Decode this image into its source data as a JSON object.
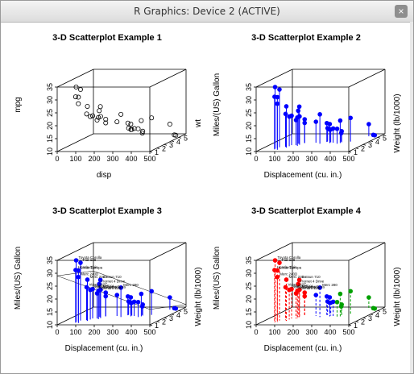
{
  "window": {
    "title": "R Graphics: Device 2 (ACTIVE)",
    "close_symbol": "×"
  },
  "chart_data": [
    {
      "type": "scatter3d",
      "title": "3-D Scatterplot Example 1",
      "xlabel": "disp",
      "ylabel": "wt",
      "zlabel": "mpg",
      "xlim": [
        0,
        500
      ],
      "ylim": [
        1,
        6
      ],
      "zlim": [
        10,
        35
      ],
      "xticks": [
        "0",
        "100",
        "200",
        "300",
        "400",
        "500"
      ],
      "yticks": [
        "1",
        "2",
        "3",
        "4",
        "5"
      ],
      "zticks": [
        "10",
        "15",
        "20",
        "25",
        "30",
        "35"
      ],
      "style": "open",
      "color": "#000000",
      "vertical_lines": false,
      "points": [
        [
          160,
          2.6,
          21.0
        ],
        [
          160,
          2.9,
          21.0
        ],
        [
          108,
          2.3,
          22.8
        ],
        [
          258,
          3.2,
          21.4
        ],
        [
          360,
          3.4,
          18.7
        ],
        [
          225,
          3.5,
          18.1
        ],
        [
          360,
          3.6,
          14.3
        ],
        [
          147,
          3.2,
          24.4
        ],
        [
          141,
          3.2,
          22.8
        ],
        [
          168,
          3.4,
          19.2
        ],
        [
          168,
          3.4,
          17.8
        ],
        [
          276,
          4.1,
          16.4
        ],
        [
          276,
          3.7,
          17.3
        ],
        [
          276,
          3.8,
          15.2
        ],
        [
          472,
          5.3,
          10.4
        ],
        [
          460,
          5.4,
          10.4
        ],
        [
          440,
          5.3,
          14.7
        ],
        [
          79,
          2.2,
          32.4
        ],
        [
          76,
          1.6,
          30.4
        ],
        [
          71,
          1.8,
          33.9
        ],
        [
          120,
          2.5,
          21.5
        ],
        [
          318,
          3.5,
          15.5
        ],
        [
          304,
          3.4,
          15.2
        ],
        [
          350,
          3.8,
          13.3
        ],
        [
          400,
          3.8,
          19.2
        ],
        [
          79,
          1.9,
          27.3
        ],
        [
          120,
          2.1,
          26.0
        ],
        [
          95,
          1.5,
          30.4
        ],
        [
          351,
          3.2,
          15.8
        ],
        [
          145,
          2.8,
          19.7
        ],
        [
          301,
          3.6,
          15.0
        ],
        [
          121,
          2.8,
          21.4
        ]
      ]
    },
    {
      "type": "scatter3d",
      "title": "3-D Scatterplot Example 2",
      "xlabel": "Displacement (cu. in.)",
      "ylabel": "Weight (lb/1000)",
      "zlabel": "Miles/(US) Gallon",
      "xlim": [
        0,
        500
      ],
      "ylim": [
        1,
        6
      ],
      "zlim": [
        10,
        35
      ],
      "xticks": [
        "0",
        "100",
        "200",
        "300",
        "400",
        "500"
      ],
      "yticks": [
        "1",
        "2",
        "3",
        "4",
        "5"
      ],
      "zticks": [
        "10",
        "15",
        "20",
        "25",
        "30",
        "35"
      ],
      "style": "filled",
      "color": "#0000ff",
      "vertical_lines": true,
      "points": "same as example 1"
    },
    {
      "type": "scatter3d",
      "title": "3-D Scatterplot Example 3",
      "xlabel": "Displacement (cu. in.)",
      "ylabel": "Weight (lb/1000)",
      "zlabel": "Miles/(US) Gallon",
      "xlim": [
        0,
        500
      ],
      "ylim": [
        1,
        6
      ],
      "zlim": [
        10,
        35
      ],
      "xticks": [
        "0",
        "100",
        "200",
        "300",
        "400",
        "500"
      ],
      "yticks": [
        "1",
        "2",
        "3",
        "4",
        "5"
      ],
      "zticks": [
        "10",
        "15",
        "20",
        "25",
        "30",
        "35"
      ],
      "style": "filled",
      "color": "#0000ff",
      "vertical_lines": true,
      "regression_plane": true,
      "labels": [
        "Toyota Corolla",
        "Fiat 128",
        "Honda Civic",
        "Lotus Europa",
        "Merc 240D",
        "Merc 230",
        "Datsun 710",
        "Volvo 142E",
        "Hornet 4 Drive",
        "Pontiac Firebird",
        "Merc 280",
        "Mazda RX4",
        "Camaro Z28",
        "Maserati Bora"
      ]
    },
    {
      "type": "scatter3d",
      "title": "3-D Scatterplot Example 4",
      "xlabel": "Displacement (cu. in.)",
      "ylabel": "Weight (lb/1000)",
      "zlabel": "Miles/(US) Gallon",
      "xlim": [
        0,
        500
      ],
      "ylim": [
        1,
        6
      ],
      "zlim": [
        10,
        35
      ],
      "xticks": [
        "0",
        "100",
        "200",
        "300",
        "400",
        "500"
      ],
      "yticks": [
        "1",
        "2",
        "3",
        "4",
        "5"
      ],
      "zticks": [
        "10",
        "15",
        "20",
        "25",
        "30",
        "35"
      ],
      "style": "filled",
      "vertical_lines": "dashed",
      "group_colors": [
        "#ff0000",
        "#0000ff",
        "#00a000"
      ],
      "labels": [
        "Toyota Corolla",
        "Fiat 128",
        "Honda Civic",
        "Lotus Europa",
        "Merc 240D",
        "Merc 230",
        "Datsun 710",
        "Volvo 142E",
        "Hornet 4 Drive",
        "Pontiac Firebird",
        "Merc 280",
        "Mazda RX4",
        "Camaro Z28",
        "Maserati Bora"
      ]
    }
  ]
}
